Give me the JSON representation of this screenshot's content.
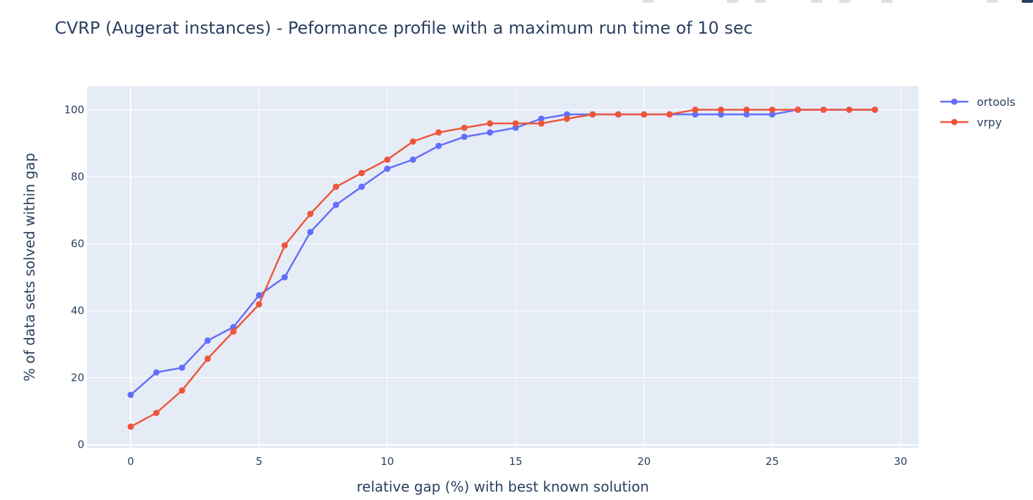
{
  "chart_data": {
    "type": "line",
    "title": "CVRP (Augerat instances) - Peformance profile with a maximum run time of 10 sec",
    "xlabel": "relative gap (%) with best known solution",
    "ylabel": "% of data sets solved within gap",
    "xlim": [
      -1.7,
      30.7
    ],
    "ylim": [
      -1,
      107
    ],
    "xticks": [
      0,
      5,
      10,
      15,
      20,
      25,
      30
    ],
    "yticks": [
      0,
      20,
      40,
      60,
      80,
      100
    ],
    "grid": true,
    "legend_position": "top-right",
    "x": [
      0,
      1,
      2,
      3,
      4,
      5,
      6,
      7,
      8,
      9,
      10,
      11,
      12,
      13,
      14,
      15,
      16,
      17,
      18,
      19,
      20,
      21,
      22,
      23,
      24,
      25,
      26,
      27,
      28,
      29
    ],
    "series": [
      {
        "name": "ortools",
        "color": "#636efa",
        "values": [
          14.9,
          21.6,
          23.0,
          31.1,
          35.1,
          44.6,
          50.0,
          63.5,
          71.6,
          77.0,
          82.4,
          85.1,
          89.2,
          91.9,
          93.2,
          94.6,
          97.3,
          98.6,
          98.6,
          98.6,
          98.6,
          98.6,
          98.6,
          98.6,
          98.6,
          98.6,
          100,
          100,
          100,
          100
        ]
      },
      {
        "name": "vrpy",
        "color": "#ef553b",
        "values": [
          5.4,
          9.5,
          16.2,
          25.7,
          33.8,
          41.9,
          59.5,
          68.9,
          77.0,
          81.1,
          85.1,
          90.5,
          93.2,
          94.6,
          95.9,
          95.9,
          95.9,
          97.3,
          98.6,
          98.6,
          98.6,
          98.6,
          100,
          100,
          100,
          100,
          100,
          100,
          100,
          100
        ]
      }
    ]
  },
  "colors": {
    "plot_bg": "#e5ecf6",
    "grid": "#ffffff",
    "text": "#2a3f5f"
  }
}
